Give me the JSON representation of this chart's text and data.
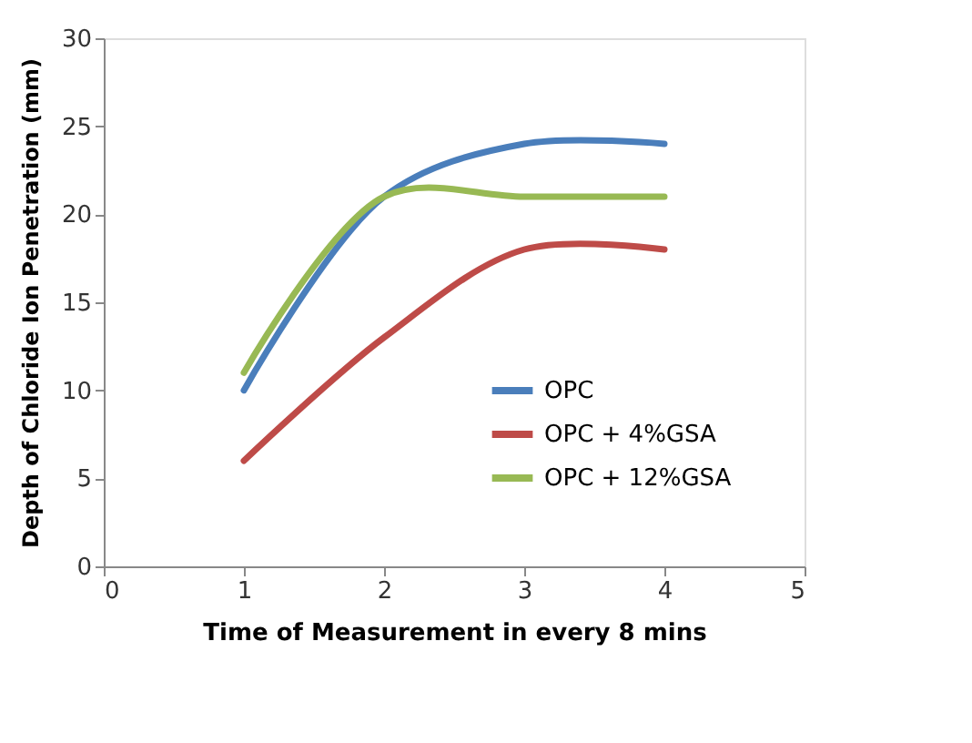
{
  "chart_data": {
    "type": "line",
    "xlabel": "Time of Measurement in every 8 mins",
    "ylabel": "Depth of Chloride Ion Penetration (mm)",
    "x": [
      1,
      2,
      3,
      4
    ],
    "series": [
      {
        "name": "OPC",
        "color": "#4a7ebb",
        "values": [
          10,
          21,
          24,
          24
        ]
      },
      {
        "name": "OPC + 4%GSA",
        "color": "#be4b48",
        "values": [
          6,
          13,
          18,
          18
        ]
      },
      {
        "name": "OPC + 12%GSA",
        "color": "#98b954",
        "values": [
          11,
          21,
          21,
          21
        ]
      }
    ],
    "xlim": [
      0,
      5
    ],
    "xticks": [
      0,
      1,
      2,
      3,
      4,
      5
    ],
    "ylim": [
      0,
      30
    ],
    "yticks": [
      0,
      5,
      10,
      15,
      20,
      25,
      30
    ],
    "grid": false,
    "legend": "bottom right",
    "marker": "none",
    "line_style": "solid"
  }
}
